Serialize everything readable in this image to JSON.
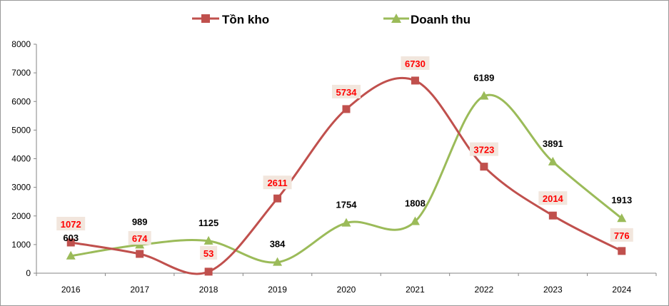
{
  "chart_data": {
    "type": "line",
    "title": "",
    "xlabel": "",
    "ylabel": "",
    "categories": [
      "2016",
      "2017",
      "2018",
      "2019",
      "2020",
      "2021",
      "2022",
      "2023",
      "2024"
    ],
    "ylim": [
      0,
      8000
    ],
    "yticks": [
      "0",
      "1000",
      "2000",
      "3000",
      "4000",
      "5000",
      "6000",
      "7000",
      "8000"
    ],
    "grid": false,
    "legend_position": "top-center",
    "series": [
      {
        "name": "Tồn kho",
        "color": "#c0504d",
        "label_color": "#ff0000",
        "label_bg": "#f2e6dd",
        "marker": "square",
        "values": [
          1072,
          674,
          53,
          2611,
          5734,
          6730,
          3723,
          2014,
          776
        ],
        "labels": [
          "1072",
          "674",
          "53",
          "2611",
          "5734",
          "6730",
          "3723",
          "2014",
          "776"
        ]
      },
      {
        "name": "Doanh thu",
        "color": "#9bbb59",
        "label_color": "#000000",
        "marker": "triangle",
        "values": [
          603,
          989,
          1125,
          384,
          1754,
          1808,
          6189,
          3891,
          1913
        ],
        "labels": [
          "603",
          "989",
          "1125",
          "384",
          "1754",
          "1808",
          "6189",
          "3891",
          "1913"
        ]
      }
    ]
  }
}
